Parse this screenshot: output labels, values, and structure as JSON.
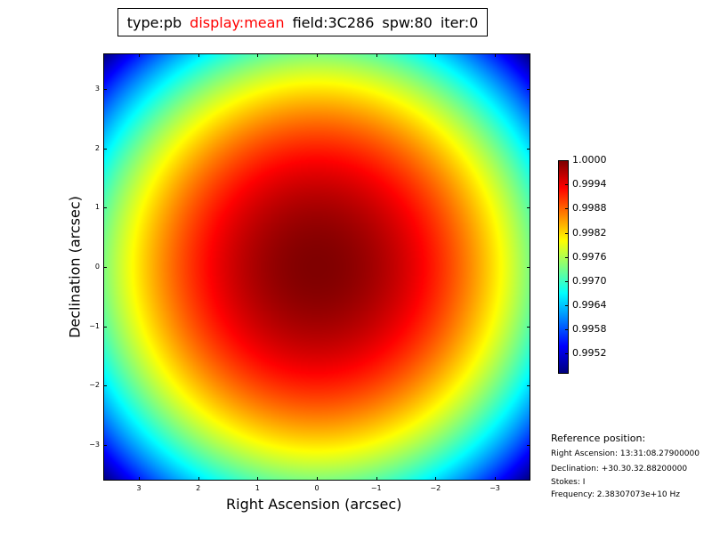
{
  "title": {
    "parts": [
      {
        "text": "type:pb",
        "color": "#000000"
      },
      {
        "text": "display:mean",
        "color": "#ff0000"
      },
      {
        "text": "field:3C286",
        "color": "#000000"
      },
      {
        "text": "spw:80",
        "color": "#000000"
      },
      {
        "text": "iter:0",
        "color": "#000000"
      }
    ]
  },
  "chart_data": {
    "type": "heatmap",
    "colormap": "jet",
    "xlabel": "Right Ascension (arcsec)",
    "ylabel": "Declination (arcsec)",
    "xlim": [
      3.6,
      -3.6
    ],
    "ylim": [
      -3.6,
      3.6
    ],
    "x_ticks": [
      "3",
      "2",
      "1",
      "0",
      "−1",
      "−2",
      "−3"
    ],
    "x_tick_values": [
      3,
      2,
      1,
      0,
      -1,
      -2,
      -3
    ],
    "y_ticks": [
      "3",
      "2",
      "1",
      "0",
      "−1",
      "−2",
      "−3"
    ],
    "y_tick_values": [
      3,
      2,
      1,
      0,
      -1,
      -2,
      -3
    ],
    "peak_value": 1.0,
    "peak_position": [
      0,
      0
    ],
    "colorbar": {
      "vmin": 0.9947,
      "vmax": 1.0,
      "ticks": [
        "1.0000",
        "0.9994",
        "0.9988",
        "0.9982",
        "0.9976",
        "0.9970",
        "0.9964",
        "0.9958",
        "0.9952"
      ],
      "tick_values": [
        1.0,
        0.9994,
        0.9988,
        0.9982,
        0.9976,
        0.997,
        0.9964,
        0.9958,
        0.9952
      ]
    }
  },
  "reference": {
    "heading": "Reference position:",
    "lines": [
      "Right Ascension: 13:31:08.27900000",
      "Declination: +30.30.32.88200000",
      "Stokes: I",
      "Frequency: 2.38307073e+10 Hz"
    ]
  }
}
